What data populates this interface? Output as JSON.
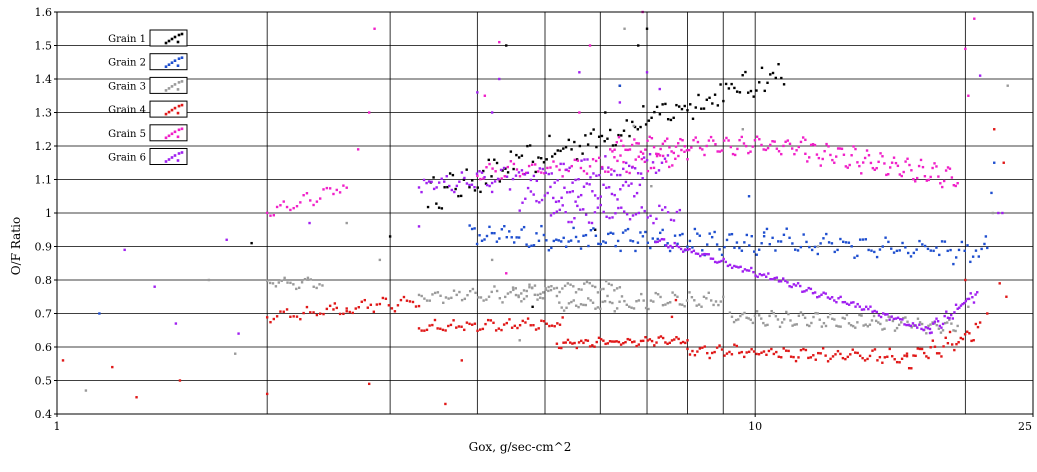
{
  "chart_data": {
    "type": "scatter",
    "title": "",
    "xlabel": "Gox, g/sec-cm^2",
    "ylabel": "O/F Ratio",
    "xscale": "log",
    "xlim": [
      1,
      25
    ],
    "ylim": [
      0.4,
      1.6
    ],
    "x_tick_labels": [
      "1",
      "10",
      "25"
    ],
    "y_ticks": [
      0.4,
      0.5,
      0.6,
      0.7,
      0.8,
      0.9,
      1.0,
      1.1,
      1.2,
      1.3,
      1.4,
      1.5,
      1.6
    ],
    "y_tick_labels": [
      "0.4",
      "0.5",
      "0.6",
      "0.7",
      "0.8",
      "0.9",
      "1",
      "1.1",
      "1.2",
      "1.3",
      "1.4",
      "1.5",
      "1.6"
    ],
    "grid": true,
    "legend_position": "top-left",
    "series": [
      {
        "name": "Grain 1",
        "color": "#000000",
        "segments": [
          {
            "x0": 3.4,
            "x1": 11.0,
            "y0": 1.05,
            "y1": 1.42,
            "n": 130,
            "amp": 0.015,
            "scatter": 0.04
          }
        ],
        "outliers": [
          [
            1.9,
            0.91
          ],
          [
            3.0,
            0.93
          ],
          [
            4.4,
            1.5
          ],
          [
            6.4,
            1.38
          ],
          [
            7.0,
            1.55
          ],
          [
            6.1,
            1.3
          ],
          [
            4.8,
            0.72
          ],
          [
            5.9,
            0.95
          ],
          [
            6.8,
            1.5
          ]
        ]
      },
      {
        "name": "Grain 2",
        "color": "#1f4fcf",
        "segments": [
          {
            "x0": 3.9,
            "x1": 10.3,
            "y0": 0.93,
            "y1": 0.91,
            "n": 120,
            "amp": 0.015,
            "scatter": 0.025
          },
          {
            "x0": 10.3,
            "x1": 21.5,
            "y0": 0.92,
            "y1": 0.88,
            "n": 80,
            "amp": 0.02,
            "scatter": 0.02
          }
        ],
        "outliers": [
          [
            1.15,
            0.7
          ],
          [
            6.4,
            1.38
          ],
          [
            9.8,
            1.05
          ],
          [
            21.8,
            1.06
          ],
          [
            22.0,
            1.15
          ],
          [
            21.4,
            0.93
          ]
        ]
      },
      {
        "name": "Grain 3",
        "color": "#9a9a9a",
        "segments": [
          {
            "x0": 2.0,
            "x1": 2.4,
            "y0": 0.79,
            "y1": 0.79,
            "n": 20,
            "amp": 0.01,
            "scatter": 0.01
          },
          {
            "x0": 3.3,
            "x1": 5.1,
            "y0": 0.75,
            "y1": 0.76,
            "n": 50,
            "amp": 0.015,
            "scatter": 0.012
          },
          {
            "x0": 4.5,
            "x1": 6.4,
            "y0": 0.77,
            "y1": 0.78,
            "n": 40,
            "amp": 0.012,
            "scatter": 0.01
          },
          {
            "x0": 5.2,
            "x1": 9.0,
            "y0": 0.73,
            "y1": 0.74,
            "n": 70,
            "amp": 0.015,
            "scatter": 0.012
          },
          {
            "x0": 9.2,
            "x1": 19.5,
            "y0": 0.69,
            "y1": 0.66,
            "n": 110,
            "amp": 0.015,
            "scatter": 0.01
          }
        ],
        "outliers": [
          [
            1.1,
            0.47
          ],
          [
            1.65,
            0.8
          ],
          [
            2.6,
            0.97
          ],
          [
            2.9,
            0.86
          ],
          [
            4.2,
            0.86
          ],
          [
            4.6,
            0.62
          ],
          [
            6.5,
            1.55
          ],
          [
            6.7,
            1.26
          ],
          [
            7.1,
            1.08
          ],
          [
            9.6,
            1.25
          ],
          [
            12.3,
            0.9
          ],
          [
            21.9,
            1.0
          ],
          [
            23.0,
            1.38
          ],
          [
            20.2,
            0.72
          ],
          [
            1.8,
            0.58
          ]
        ]
      },
      {
        "name": "Grain 4",
        "color": "#e01818",
        "segments": [
          {
            "x0": 2.0,
            "x1": 2.6,
            "y0": 0.69,
            "y1": 0.71,
            "n": 25,
            "amp": 0.01,
            "scatter": 0.01
          },
          {
            "x0": 2.6,
            "x1": 3.3,
            "y0": 0.72,
            "y1": 0.74,
            "n": 25,
            "amp": 0.015,
            "scatter": 0.012
          },
          {
            "x0": 3.3,
            "x1": 5.3,
            "y0": 0.66,
            "y1": 0.67,
            "n": 55,
            "amp": 0.012,
            "scatter": 0.01
          },
          {
            "x0": 5.2,
            "x1": 8.0,
            "y0": 0.61,
            "y1": 0.62,
            "n": 60,
            "amp": 0.008,
            "scatter": 0.008
          },
          {
            "x0": 8.0,
            "x1": 16.5,
            "y0": 0.59,
            "y1": 0.57,
            "n": 90,
            "amp": 0.012,
            "scatter": 0.012
          },
          {
            "x0": 16.5,
            "x1": 21.0,
            "y0": 0.56,
            "y1": 0.65,
            "n": 35,
            "amp": 0.015,
            "scatter": 0.02
          }
        ],
        "outliers": [
          [
            1.02,
            0.56
          ],
          [
            1.2,
            0.54
          ],
          [
            1.3,
            0.45
          ],
          [
            1.5,
            0.5
          ],
          [
            2.0,
            0.46
          ],
          [
            2.5,
            0.73
          ],
          [
            2.8,
            0.49
          ],
          [
            3.6,
            0.43
          ],
          [
            3.8,
            0.56
          ],
          [
            7.6,
            0.69
          ],
          [
            7.7,
            0.74
          ],
          [
            21.5,
            0.7
          ],
          [
            22.0,
            1.25
          ],
          [
            22.4,
            0.79
          ],
          [
            22.7,
            1.15
          ],
          [
            22.9,
            0.75
          ],
          [
            20.0,
            0.8
          ]
        ]
      },
      {
        "name": "Grain 5",
        "color": "#f020c8",
        "segments": [
          {
            "x0": 2.0,
            "x1": 2.6,
            "y0": 1.0,
            "y1": 1.08,
            "n": 25,
            "amp": 0.015,
            "scatter": 0.012
          },
          {
            "x0": 4.0,
            "x1": 8.0,
            "y0": 1.12,
            "y1": 1.16,
            "n": 70,
            "amp": 0.02,
            "scatter": 0.012
          },
          {
            "x0": 6.2,
            "x1": 11.8,
            "y0": 1.2,
            "y1": 1.2,
            "n": 90,
            "amp": 0.02,
            "scatter": 0.008
          },
          {
            "x0": 11.8,
            "x1": 19.5,
            "y0": 1.19,
            "y1": 1.1,
            "n": 80,
            "amp": 0.03,
            "scatter": 0.01
          }
        ],
        "outliers": [
          [
            2.7,
            1.19
          ],
          [
            2.8,
            1.3
          ],
          [
            2.85,
            1.55
          ],
          [
            4.1,
            1.35
          ],
          [
            4.3,
            1.51
          ],
          [
            5.6,
            1.3
          ],
          [
            5.8,
            1.5
          ],
          [
            6.9,
            1.6
          ],
          [
            20.0,
            1.49
          ],
          [
            20.6,
            1.58
          ],
          [
            20.2,
            1.35
          ],
          [
            4.4,
            0.82
          ]
        ]
      },
      {
        "name": "Grain 6",
        "color": "#a020f0",
        "segments": [
          {
            "x0": 3.3,
            "x1": 4.2,
            "y0": 1.08,
            "y1": 1.1,
            "n": 30,
            "amp": 0.015,
            "scatter": 0.015
          },
          {
            "x0": 4.2,
            "x1": 7.5,
            "y0": 1.1,
            "y1": 1.15,
            "n": 60,
            "amp": 0.02,
            "scatter": 0.02
          },
          {
            "x0": 4.6,
            "x1": 6.9,
            "y0": 1.04,
            "y1": 1.08,
            "n": 45,
            "amp": 0.02,
            "scatter": 0.015
          },
          {
            "x0": 5.1,
            "x1": 7.8,
            "y0": 1.0,
            "y1": 1.0,
            "n": 45,
            "amp": 0.02,
            "scatter": 0.012
          },
          {
            "x0": 7.2,
            "x1": 17.8,
            "y0": 0.92,
            "y1": 0.65,
            "n": 130,
            "amp": 0.005,
            "scatter": 0.008
          },
          {
            "x0": 17.8,
            "x1": 20.8,
            "y0": 0.65,
            "y1": 0.76,
            "n": 30,
            "amp": 0.01,
            "scatter": 0.012
          }
        ],
        "outliers": [
          [
            1.25,
            0.89
          ],
          [
            1.38,
            0.78
          ],
          [
            1.48,
            0.67
          ],
          [
            1.75,
            0.92
          ],
          [
            1.82,
            0.64
          ],
          [
            2.3,
            0.97
          ],
          [
            3.3,
            0.96
          ],
          [
            4.0,
            1.36
          ],
          [
            4.2,
            1.3
          ],
          [
            4.3,
            1.4
          ],
          [
            5.6,
            1.42
          ],
          [
            6.4,
            1.33
          ],
          [
            7.0,
            1.42
          ],
          [
            7.3,
            1.37
          ],
          [
            21.0,
            1.41
          ],
          [
            22.3,
            1.0
          ],
          [
            22.6,
            1.0
          ]
        ]
      }
    ]
  }
}
